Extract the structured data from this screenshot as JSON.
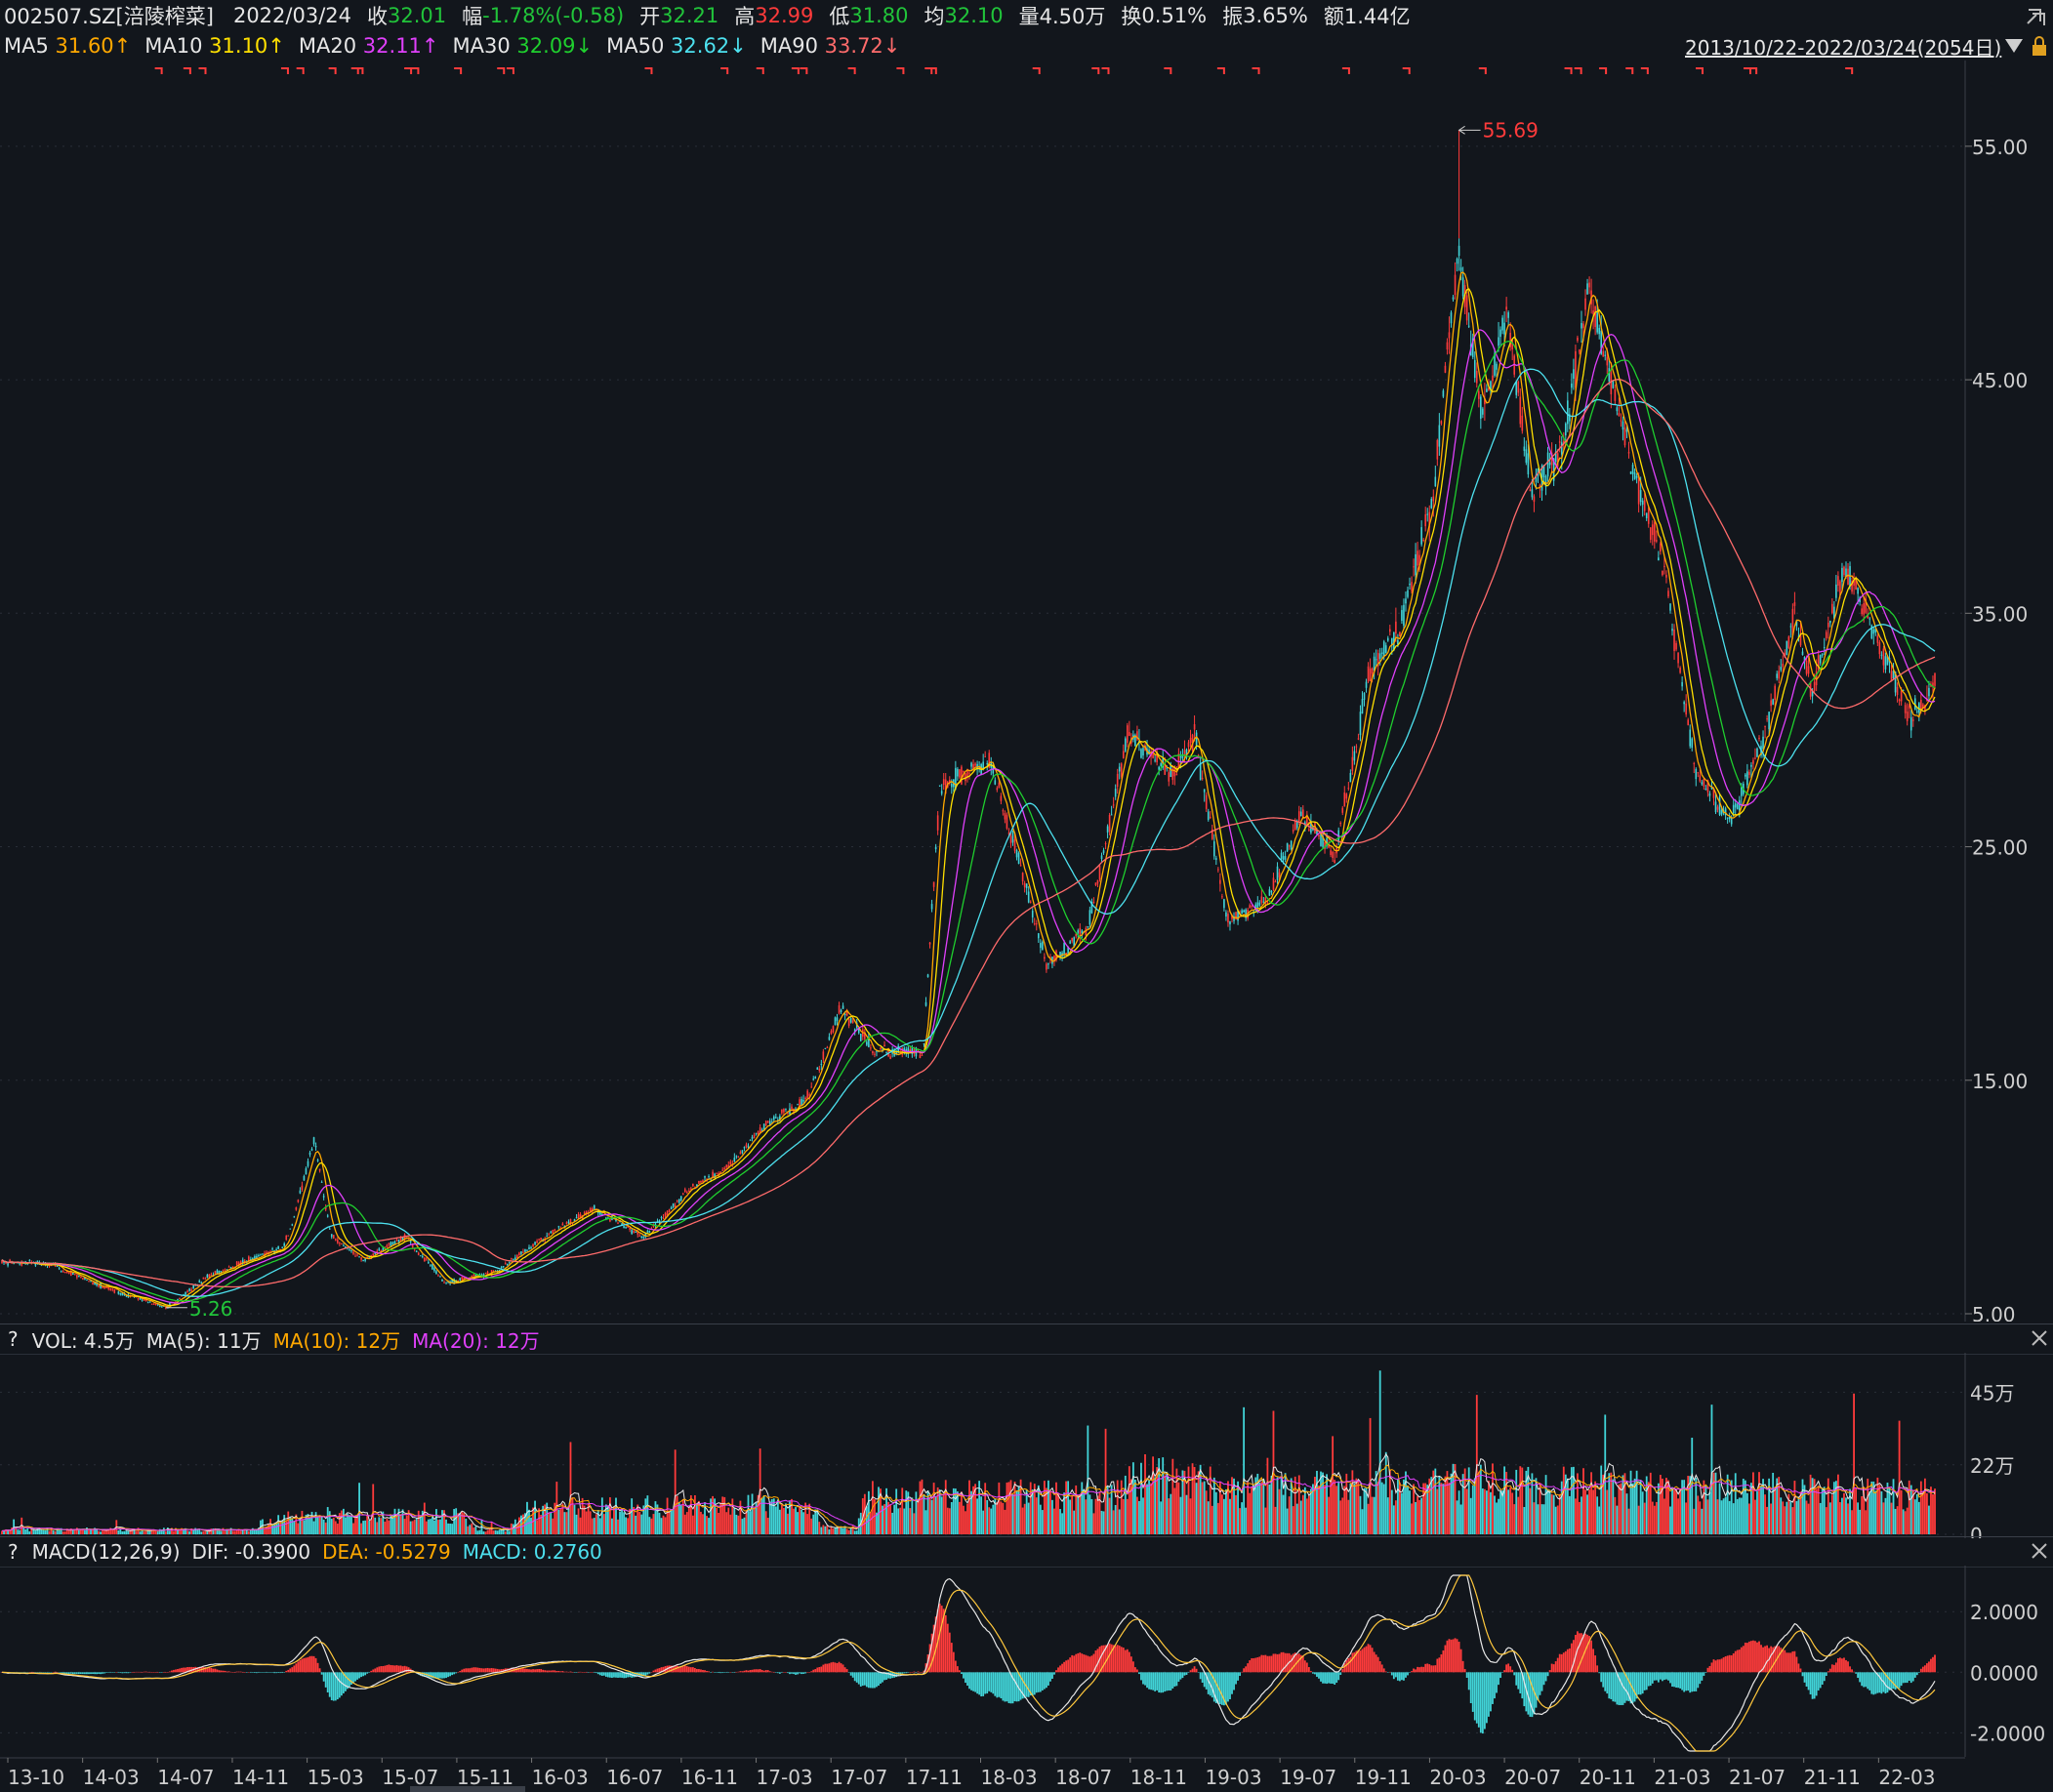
{
  "header": {
    "symbol": "002507.SZ[涪陵榨菜]",
    "date": "2022/03/24",
    "close_label": "收",
    "close": "32.01",
    "change_label": "幅",
    "change": "-1.78%(-0.58)",
    "open_label": "开",
    "open": "32.21",
    "high_label": "高",
    "high": "32.99",
    "low_label": "低",
    "low": "31.80",
    "avg_label": "均",
    "avg": "32.10",
    "volume_label": "量",
    "volume": "4.50万",
    "turnover_label": "换",
    "turnover": "0.51%",
    "amplitude_label": "振",
    "amplitude": "3.65%",
    "amount_label": "额",
    "amount": "1.44亿"
  },
  "ma_legend": {
    "ma5_label": "MA5",
    "ma5": "31.60↑",
    "ma10_label": "MA10",
    "ma10": "31.10↑",
    "ma20_label": "MA20",
    "ma20": "32.11↑",
    "ma30_label": "MA30",
    "ma30": "32.09↓",
    "ma50_label": "MA50",
    "ma50": "32.62↓",
    "ma90_label": "MA90",
    "ma90": "33.72↓"
  },
  "range_label": "2013/10/22-2022/03/24(2054日)",
  "vol_legend": {
    "help": "?",
    "vol": "VOL: 4.5万",
    "ma5": "MA(5): 11万",
    "ma10": "MA(10): 12万",
    "ma20": "MA(20): 12万"
  },
  "macd_legend": {
    "help": "?",
    "name": "MACD(12,26,9)",
    "dif": "DIF: -0.3900",
    "dea": "DEA: -0.5279",
    "macd": "MACD: 0.2760"
  },
  "colors": {
    "up": "#ff3b3b",
    "down": "#41d4d8",
    "bg": "#12161c",
    "grid": "#2a2f38",
    "ma5": "#ffa800",
    "ma10": "#ffe000",
    "ma20": "#e040fb",
    "ma30": "#1fcf2e",
    "ma50": "#4de1ef",
    "ma90": "#ff6b6b",
    "dif": "#e8e8e8",
    "dea": "#ffc83d"
  },
  "chart_data": [
    {
      "type": "candlestick",
      "y_ticks": [
        "55.00",
        "45.00",
        "35.00",
        "25.00",
        "15.00",
        "5.00"
      ],
      "ylim": [
        5,
        57
      ],
      "max_marker": "55.69",
      "min_marker": "5.26",
      "x_ticks": [
        "13-10",
        "14-03",
        "14-07",
        "14-11",
        "15-03",
        "15-07",
        "15-11",
        "16-03",
        "16-07",
        "16-11",
        "17-03",
        "17-07",
        "17-11",
        "18-03",
        "18-07",
        "18-11",
        "19-03",
        "19-07",
        "19-11",
        "20-03",
        "20-07",
        "20-11",
        "21-03",
        "21-07",
        "21-11",
        "22-03"
      ],
      "price_path": [
        [
          0,
          7.2
        ],
        [
          0.03,
          7.1
        ],
        [
          0.06,
          6.2
        ],
        [
          0.085,
          5.6
        ],
        [
          0.1,
          5.26
        ],
        [
          0.125,
          6.6
        ],
        [
          0.15,
          7.3
        ],
        [
          0.17,
          7.8
        ],
        [
          0.175,
          8.5
        ],
        [
          0.19,
          12.5
        ],
        [
          0.2,
          8.3
        ],
        [
          0.22,
          7.3
        ],
        [
          0.245,
          8.3
        ],
        [
          0.27,
          6.3
        ],
        [
          0.3,
          6.8
        ],
        [
          0.33,
          8.3
        ],
        [
          0.36,
          9.5
        ],
        [
          0.39,
          8.3
        ],
        [
          0.42,
          10.5
        ],
        [
          0.44,
          11.2
        ],
        [
          0.46,
          12.8
        ],
        [
          0.49,
          14.3
        ],
        [
          0.51,
          18.2
        ],
        [
          0.53,
          16.2
        ],
        [
          0.56,
          16.2
        ],
        [
          0.57,
          27.5
        ],
        [
          0.6,
          28.7
        ],
        [
          0.62,
          24.0
        ],
        [
          0.635,
          20.0
        ],
        [
          0.66,
          21.5
        ],
        [
          0.685,
          30.0
        ],
        [
          0.71,
          28.0
        ],
        [
          0.725,
          29.8
        ],
        [
          0.745,
          21.8
        ],
        [
          0.77,
          22.8
        ],
        [
          0.79,
          26.5
        ],
        [
          0.81,
          24.5
        ],
        [
          0.83,
          32.0
        ],
        [
          0.85,
          34.5
        ],
        [
          0.87,
          40.0
        ],
        [
          0.885,
          50.5
        ],
        [
          0.9,
          43.5
        ],
        [
          0.915,
          48.0
        ],
        [
          0.93,
          40.0
        ],
        [
          0.95,
          42.5
        ],
        [
          0.965,
          49.0
        ],
        [
          0.975,
          46.0
        ],
        [
          0.99,
          41.5
        ],
        [
          1.01,
          37.0
        ],
        [
          1.03,
          28.0
        ],
        [
          1.05,
          26.2
        ],
        [
          1.07,
          29.5
        ],
        [
          1.09,
          35.0
        ],
        [
          1.1,
          31.5
        ],
        [
          1.12,
          37.0
        ],
        [
          1.14,
          34.0
        ],
        [
          1.16,
          30.5
        ],
        [
          1.175,
          32.0
        ]
      ],
      "series": [
        {
          "name": "MA5"
        },
        {
          "name": "MA10"
        },
        {
          "name": "MA20"
        },
        {
          "name": "MA30"
        },
        {
          "name": "MA50"
        },
        {
          "name": "MA90"
        }
      ]
    },
    {
      "type": "bar",
      "name": "VOL",
      "y_ticks": [
        "45万",
        "22万",
        "0"
      ],
      "ylim": [
        0,
        55
      ],
      "volume_envelope": [
        [
          0,
          1.5
        ],
        [
          0.16,
          1.5
        ],
        [
          0.165,
          6
        ],
        [
          0.28,
          6
        ],
        [
          0.29,
          1.5
        ],
        [
          0.31,
          1.5
        ],
        [
          0.315,
          8
        ],
        [
          0.47,
          9
        ],
        [
          0.49,
          9
        ],
        [
          0.5,
          2
        ],
        [
          0.52,
          2
        ],
        [
          0.525,
          12
        ],
        [
          0.68,
          12
        ],
        [
          0.69,
          18
        ],
        [
          0.75,
          14
        ],
        [
          0.85,
          14
        ],
        [
          0.88,
          16
        ],
        [
          1.0,
          14
        ],
        [
          1.175,
          13
        ]
      ]
    },
    {
      "type": "bar",
      "name": "MACD",
      "y_ticks": [
        "2.0000",
        "0.0000",
        "-2.0000"
      ],
      "ylim": [
        -2.6,
        3.2
      ]
    }
  ]
}
